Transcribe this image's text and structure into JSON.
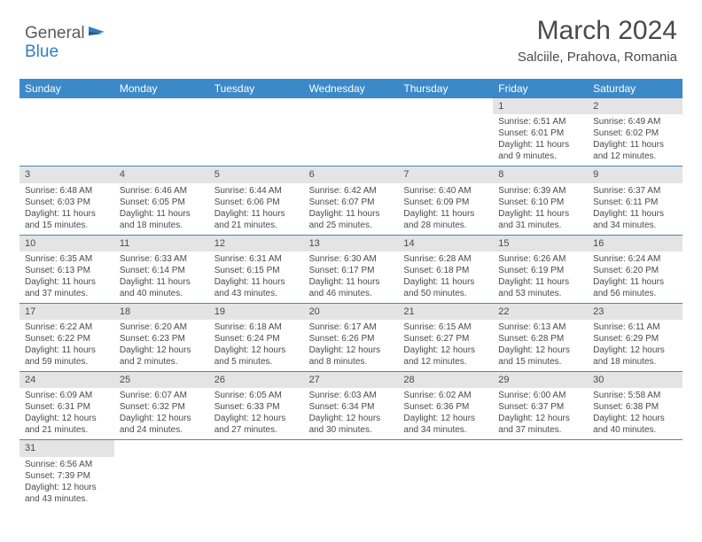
{
  "logo": {
    "part1": "General",
    "part2": "Blue"
  },
  "title": "March 2024",
  "location": "Salciile, Prahova, Romania",
  "colors": {
    "header_bg": "#3b89c9",
    "daynum_bg": "#e4e4e4",
    "border": "#3b89c9",
    "logo_blue": "#2f7dc3",
    "text": "#4a4a4a"
  },
  "daynames": [
    "Sunday",
    "Monday",
    "Tuesday",
    "Wednesday",
    "Thursday",
    "Friday",
    "Saturday"
  ],
  "weeks": [
    [
      {
        "n": "",
        "sr": "",
        "ss": "",
        "dl": ""
      },
      {
        "n": "",
        "sr": "",
        "ss": "",
        "dl": ""
      },
      {
        "n": "",
        "sr": "",
        "ss": "",
        "dl": ""
      },
      {
        "n": "",
        "sr": "",
        "ss": "",
        "dl": ""
      },
      {
        "n": "",
        "sr": "",
        "ss": "",
        "dl": ""
      },
      {
        "n": "1",
        "sr": "Sunrise: 6:51 AM",
        "ss": "Sunset: 6:01 PM",
        "dl": "Daylight: 11 hours and 9 minutes."
      },
      {
        "n": "2",
        "sr": "Sunrise: 6:49 AM",
        "ss": "Sunset: 6:02 PM",
        "dl": "Daylight: 11 hours and 12 minutes."
      }
    ],
    [
      {
        "n": "3",
        "sr": "Sunrise: 6:48 AM",
        "ss": "Sunset: 6:03 PM",
        "dl": "Daylight: 11 hours and 15 minutes."
      },
      {
        "n": "4",
        "sr": "Sunrise: 6:46 AM",
        "ss": "Sunset: 6:05 PM",
        "dl": "Daylight: 11 hours and 18 minutes."
      },
      {
        "n": "5",
        "sr": "Sunrise: 6:44 AM",
        "ss": "Sunset: 6:06 PM",
        "dl": "Daylight: 11 hours and 21 minutes."
      },
      {
        "n": "6",
        "sr": "Sunrise: 6:42 AM",
        "ss": "Sunset: 6:07 PM",
        "dl": "Daylight: 11 hours and 25 minutes."
      },
      {
        "n": "7",
        "sr": "Sunrise: 6:40 AM",
        "ss": "Sunset: 6:09 PM",
        "dl": "Daylight: 11 hours and 28 minutes."
      },
      {
        "n": "8",
        "sr": "Sunrise: 6:39 AM",
        "ss": "Sunset: 6:10 PM",
        "dl": "Daylight: 11 hours and 31 minutes."
      },
      {
        "n": "9",
        "sr": "Sunrise: 6:37 AM",
        "ss": "Sunset: 6:11 PM",
        "dl": "Daylight: 11 hours and 34 minutes."
      }
    ],
    [
      {
        "n": "10",
        "sr": "Sunrise: 6:35 AM",
        "ss": "Sunset: 6:13 PM",
        "dl": "Daylight: 11 hours and 37 minutes."
      },
      {
        "n": "11",
        "sr": "Sunrise: 6:33 AM",
        "ss": "Sunset: 6:14 PM",
        "dl": "Daylight: 11 hours and 40 minutes."
      },
      {
        "n": "12",
        "sr": "Sunrise: 6:31 AM",
        "ss": "Sunset: 6:15 PM",
        "dl": "Daylight: 11 hours and 43 minutes."
      },
      {
        "n": "13",
        "sr": "Sunrise: 6:30 AM",
        "ss": "Sunset: 6:17 PM",
        "dl": "Daylight: 11 hours and 46 minutes."
      },
      {
        "n": "14",
        "sr": "Sunrise: 6:28 AM",
        "ss": "Sunset: 6:18 PM",
        "dl": "Daylight: 11 hours and 50 minutes."
      },
      {
        "n": "15",
        "sr": "Sunrise: 6:26 AM",
        "ss": "Sunset: 6:19 PM",
        "dl": "Daylight: 11 hours and 53 minutes."
      },
      {
        "n": "16",
        "sr": "Sunrise: 6:24 AM",
        "ss": "Sunset: 6:20 PM",
        "dl": "Daylight: 11 hours and 56 minutes."
      }
    ],
    [
      {
        "n": "17",
        "sr": "Sunrise: 6:22 AM",
        "ss": "Sunset: 6:22 PM",
        "dl": "Daylight: 11 hours and 59 minutes."
      },
      {
        "n": "18",
        "sr": "Sunrise: 6:20 AM",
        "ss": "Sunset: 6:23 PM",
        "dl": "Daylight: 12 hours and 2 minutes."
      },
      {
        "n": "19",
        "sr": "Sunrise: 6:18 AM",
        "ss": "Sunset: 6:24 PM",
        "dl": "Daylight: 12 hours and 5 minutes."
      },
      {
        "n": "20",
        "sr": "Sunrise: 6:17 AM",
        "ss": "Sunset: 6:26 PM",
        "dl": "Daylight: 12 hours and 8 minutes."
      },
      {
        "n": "21",
        "sr": "Sunrise: 6:15 AM",
        "ss": "Sunset: 6:27 PM",
        "dl": "Daylight: 12 hours and 12 minutes."
      },
      {
        "n": "22",
        "sr": "Sunrise: 6:13 AM",
        "ss": "Sunset: 6:28 PM",
        "dl": "Daylight: 12 hours and 15 minutes."
      },
      {
        "n": "23",
        "sr": "Sunrise: 6:11 AM",
        "ss": "Sunset: 6:29 PM",
        "dl": "Daylight: 12 hours and 18 minutes."
      }
    ],
    [
      {
        "n": "24",
        "sr": "Sunrise: 6:09 AM",
        "ss": "Sunset: 6:31 PM",
        "dl": "Daylight: 12 hours and 21 minutes."
      },
      {
        "n": "25",
        "sr": "Sunrise: 6:07 AM",
        "ss": "Sunset: 6:32 PM",
        "dl": "Daylight: 12 hours and 24 minutes."
      },
      {
        "n": "26",
        "sr": "Sunrise: 6:05 AM",
        "ss": "Sunset: 6:33 PM",
        "dl": "Daylight: 12 hours and 27 minutes."
      },
      {
        "n": "27",
        "sr": "Sunrise: 6:03 AM",
        "ss": "Sunset: 6:34 PM",
        "dl": "Daylight: 12 hours and 30 minutes."
      },
      {
        "n": "28",
        "sr": "Sunrise: 6:02 AM",
        "ss": "Sunset: 6:36 PM",
        "dl": "Daylight: 12 hours and 34 minutes."
      },
      {
        "n": "29",
        "sr": "Sunrise: 6:00 AM",
        "ss": "Sunset: 6:37 PM",
        "dl": "Daylight: 12 hours and 37 minutes."
      },
      {
        "n": "30",
        "sr": "Sunrise: 5:58 AM",
        "ss": "Sunset: 6:38 PM",
        "dl": "Daylight: 12 hours and 40 minutes."
      }
    ],
    [
      {
        "n": "31",
        "sr": "Sunrise: 6:56 AM",
        "ss": "Sunset: 7:39 PM",
        "dl": "Daylight: 12 hours and 43 minutes."
      },
      {
        "n": "",
        "sr": "",
        "ss": "",
        "dl": ""
      },
      {
        "n": "",
        "sr": "",
        "ss": "",
        "dl": ""
      },
      {
        "n": "",
        "sr": "",
        "ss": "",
        "dl": ""
      },
      {
        "n": "",
        "sr": "",
        "ss": "",
        "dl": ""
      },
      {
        "n": "",
        "sr": "",
        "ss": "",
        "dl": ""
      },
      {
        "n": "",
        "sr": "",
        "ss": "",
        "dl": ""
      }
    ]
  ]
}
